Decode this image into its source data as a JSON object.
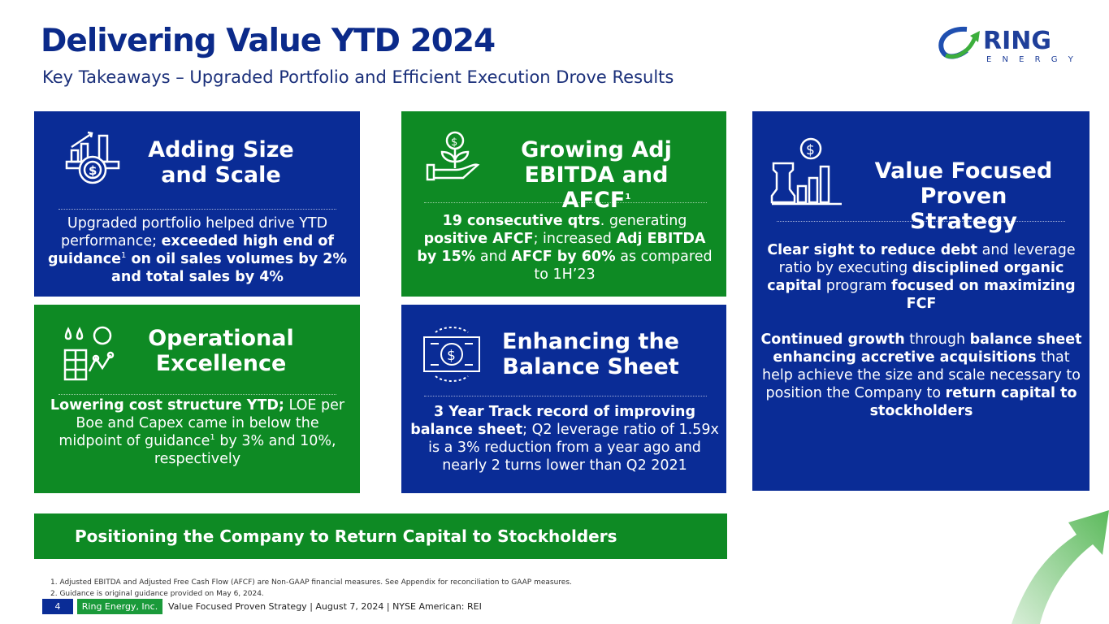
{
  "header": {
    "title": "Delivering Value YTD 2024",
    "subtitle": "Key Takeaways – Upgraded Portfolio and Efficient Execution Drove Results"
  },
  "logo": {
    "word": "RING",
    "sub": "E N E R G Y"
  },
  "colors": {
    "blue": "#0a2c96",
    "green": "#0e8a24"
  },
  "cards": [
    {
      "title": "Adding Size and Scale",
      "icon": "growth-chart-coin-icon",
      "body": [
        {
          "t": "Upgraded portfolio helped drive YTD performance; "
        },
        {
          "t": "exceeded high end of guidance",
          "b": 1
        },
        {
          "t": "1",
          "sup": 1
        },
        {
          "t": " on oil sales volumes by 2% and total sales by 4%",
          "b": 1
        }
      ]
    },
    {
      "title": "Growing Adj EBITDA and AFCF",
      "title_sup": "1",
      "icon": "money-plant-hand-icon",
      "body": [
        {
          "t": "19 consecutive qtrs",
          "b": 1
        },
        {
          "t": ". generating "
        },
        {
          "t": "positive AFCF",
          "b": 1
        },
        {
          "t": "; increased "
        },
        {
          "t": "Adj EBITDA by 15%",
          "b": 1
        },
        {
          "t": " and "
        },
        {
          "t": "AFCF by 60%",
          "b": 1
        },
        {
          "t": " as compared to 1H’23"
        }
      ]
    },
    {
      "title": "Value Focused Proven Strategy",
      "icon": "chess-rook-chart-icon",
      "body": [
        {
          "t": "Clear sight to reduce debt",
          "b": 1
        },
        {
          "t": " and leverage ratio by executing "
        },
        {
          "t": "disciplined organic capital",
          "b": 1
        },
        {
          "t": " program "
        },
        {
          "t": "focused on maximizing FCF",
          "b": 1
        }
      ],
      "body2": [
        {
          "t": "Continued growth",
          "b": 1
        },
        {
          "t": " through "
        },
        {
          "t": "balance sheet enhancing accretive acquisitions",
          "b": 1
        },
        {
          "t": " that help achieve the size and scale necessary to position the Company to "
        },
        {
          "t": "return capital to stockholders",
          "b": 1
        }
      ]
    },
    {
      "title": "Operational Excellence",
      "icon": "oil-drop-pipeline-icon",
      "body": [
        {
          "t": "Lowering cost structure YTD;",
          "b": 1
        },
        {
          "t": " LOE per Boe and Capex came in below the midpoint of guidance"
        },
        {
          "t": "1",
          "sup": 1
        },
        {
          "t": " by 3% and 10%, respectively"
        }
      ]
    },
    {
      "title": "Enhancing the Balance Sheet",
      "icon": "money-cycle-icon",
      "body": [
        {
          "t": "3 Year Track record of improving balance sheet",
          "b": 1
        },
        {
          "t": "; Q2 leverage ratio of 1.59x is a 3% reduction from a year ago and nearly 2 turns lower than Q2 2021"
        }
      ]
    }
  ],
  "banner": "Positioning the Company to Return Capital to Stockholders",
  "footnotes": [
    "1.   Adjusted EBITDA and Adjusted Free Cash Flow (AFCF) are Non-GAAP financial measures. See Appendix for reconciliation to GAAP measures.",
    "2.   Guidance is original guidance provided on May 6, 2024."
  ],
  "footer": {
    "page": "4",
    "company": "Ring Energy, Inc.",
    "text": "Value Focused Proven Strategy  | August 7, 2024 |  NYSE American: REI"
  }
}
